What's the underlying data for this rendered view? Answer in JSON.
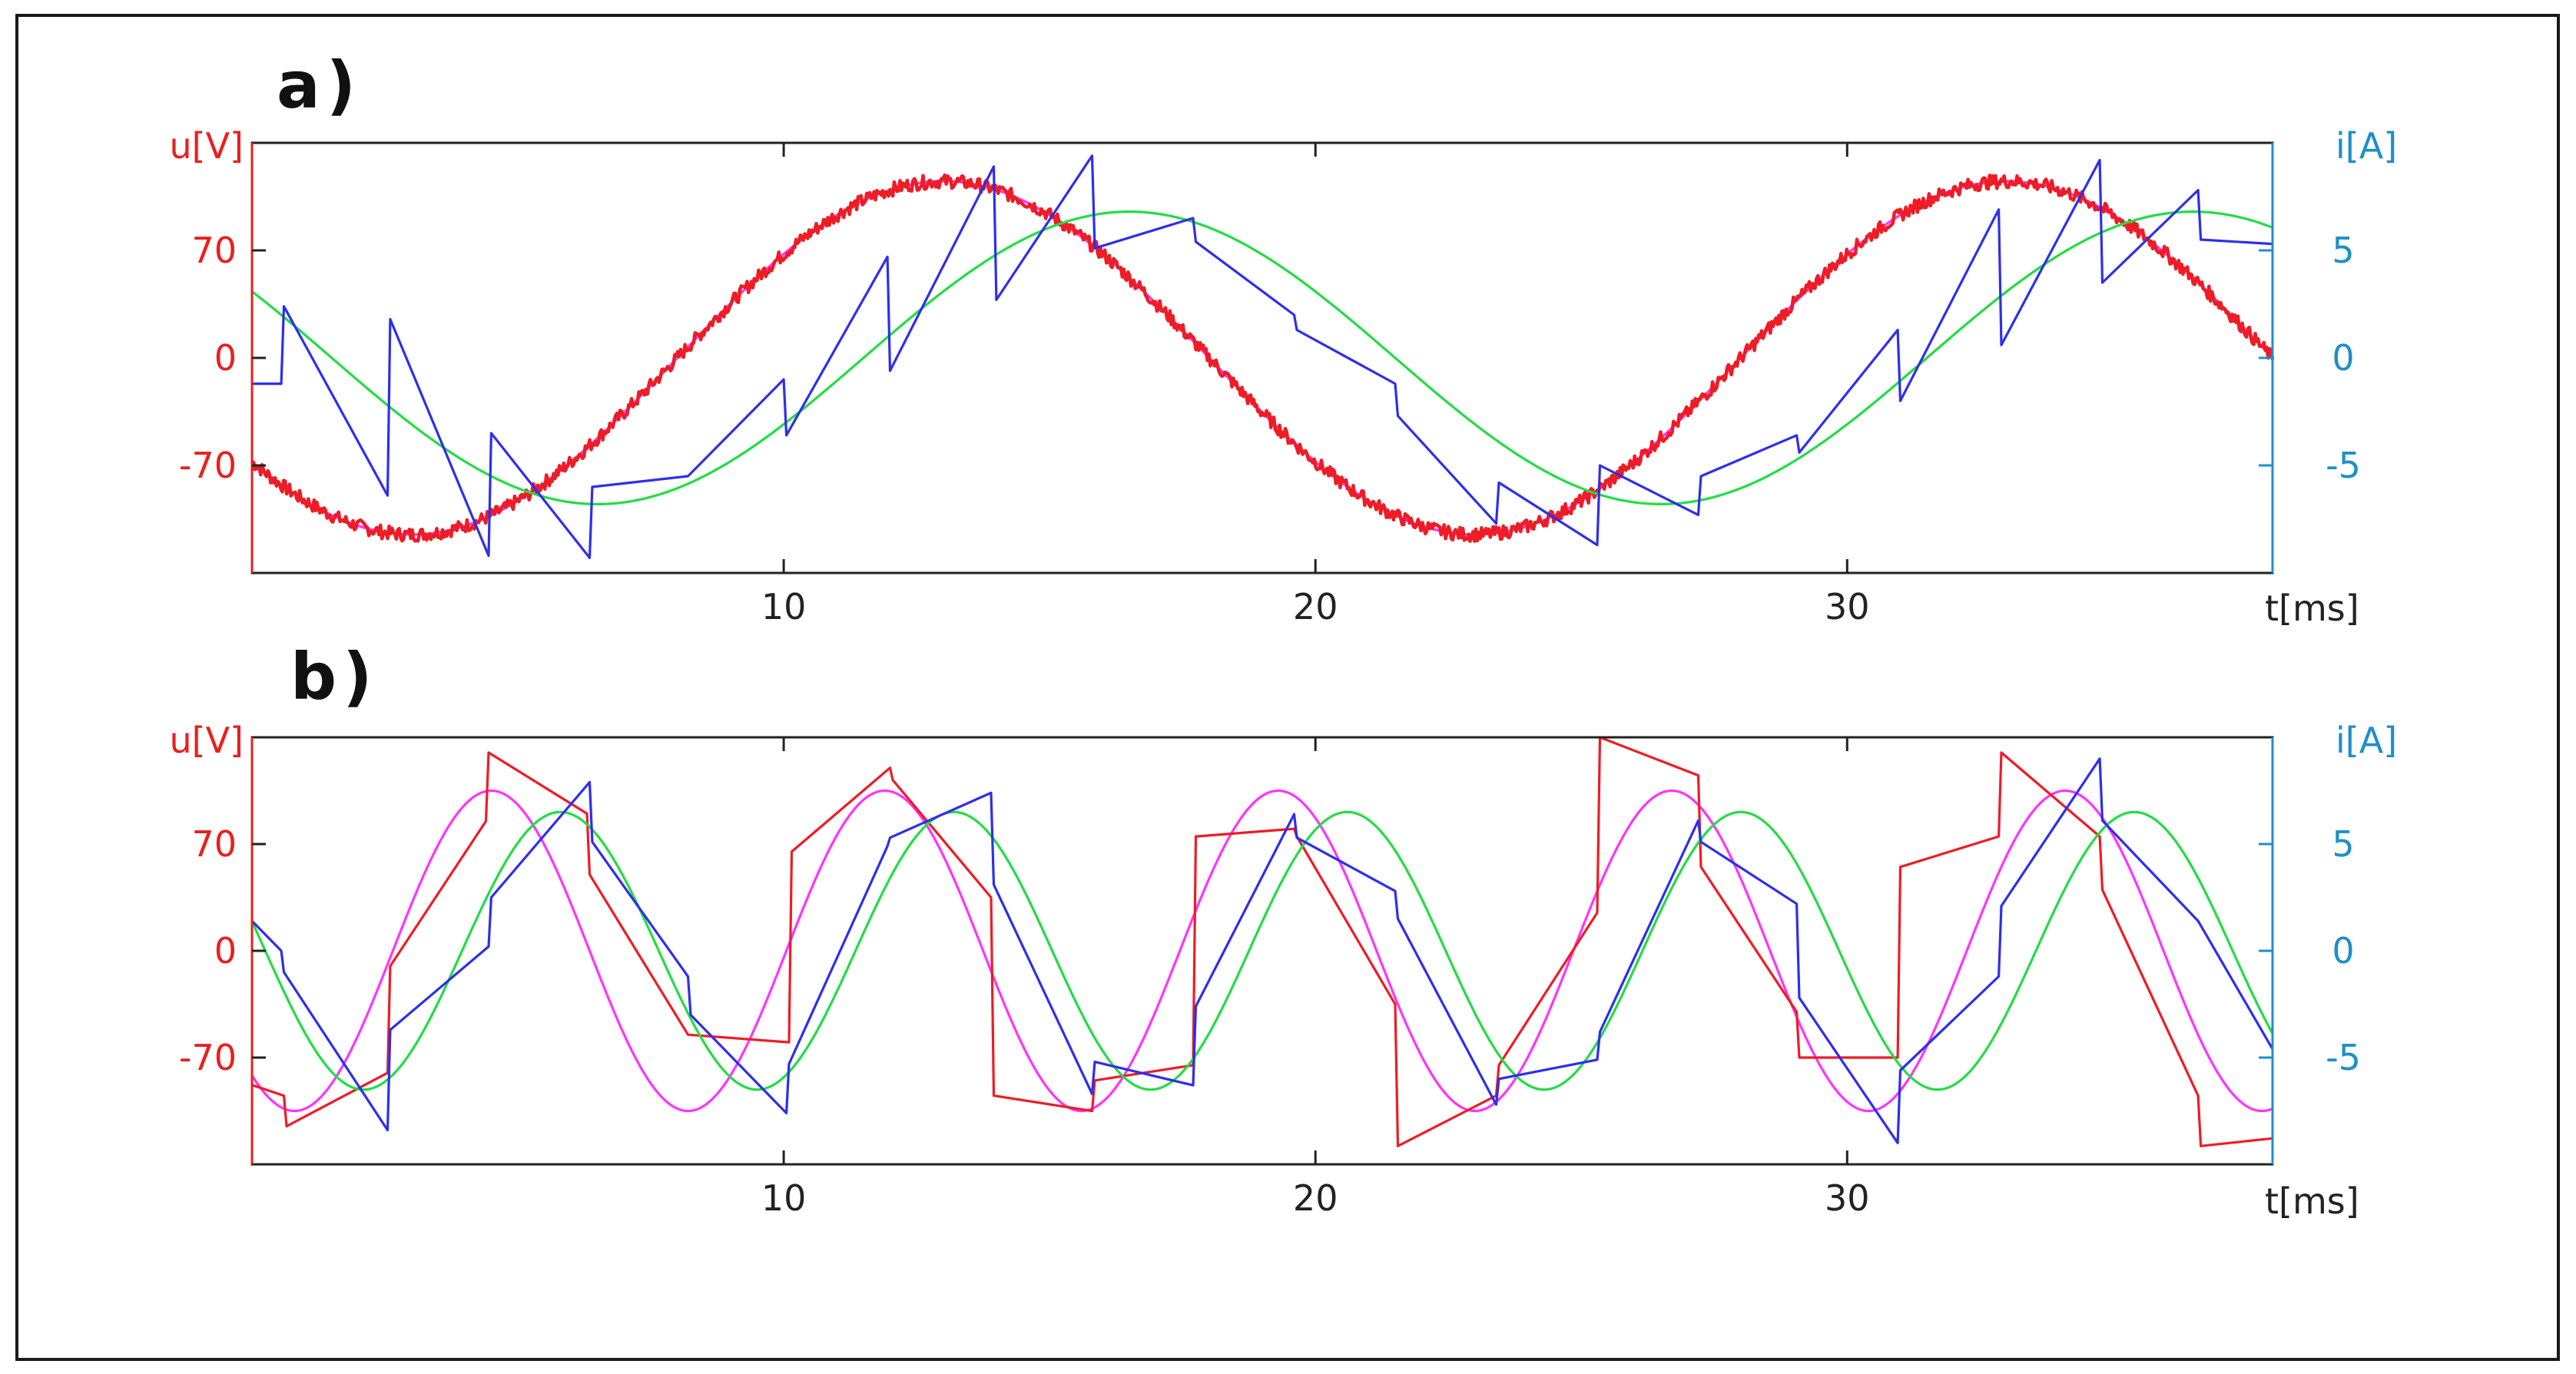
{
  "chart_data": [
    {
      "panel_label": "a)",
      "type": "line",
      "xlabel": "t[ms]",
      "ylabel_left": "u[V]",
      "ylabel_right": "i[A]",
      "xlim": [
        0,
        38
      ],
      "ylim_left": [
        -140,
        140
      ],
      "ylim_right": [
        -10,
        10
      ],
      "xticks": [
        10,
        20,
        30
      ],
      "yticks_left": [
        -70,
        0,
        70
      ],
      "yticks_right": [
        -5,
        0,
        5
      ],
      "colors": {
        "voltage": "#ee1c25",
        "voltage_fundamental": "#ff33ff",
        "current": "#2e2eee",
        "current_fundamental": "#22dd44",
        "left_axis": "#e8201e",
        "right_axis": "#1f8fc8"
      },
      "series": [
        {
          "axis": "left",
          "color": "#ff33ff",
          "kind": "sine",
          "amplitude": 115,
          "phase_peak_ms": 13,
          "period_ms": 20
        },
        {
          "axis": "left",
          "color": "#ee1c25",
          "kind": "noisy-sine",
          "amplitude": 115,
          "phase_peak_ms": 13,
          "period_ms": 20
        },
        {
          "axis": "right",
          "color": "#22dd44",
          "kind": "sine",
          "amplitude": 6.8,
          "phase_peak_ms": 16.5,
          "period_ms": 20
        },
        {
          "axis": "right",
          "color": "#2e2eee",
          "kind": "points",
          "x": [
            0.0,
            0.55,
            0.6,
            2.55,
            2.6,
            4.45,
            4.5,
            6.35,
            6.4,
            8.2,
            10.0,
            10.05,
            11.95,
            12.0,
            13.95,
            14.0,
            15.8,
            15.85,
            17.7,
            17.75,
            19.6,
            19.65,
            21.5,
            21.55,
            23.4,
            23.45,
            25.3,
            25.35,
            27.2,
            27.25,
            29.05,
            29.1,
            30.95,
            31.0,
            32.85,
            32.9,
            34.75,
            34.8,
            36.6,
            36.65,
            38.0
          ],
          "y": [
            -1.2,
            -1.2,
            2.4,
            -6.4,
            1.8,
            -9.2,
            -3.5,
            -9.3,
            -6.0,
            -5.5,
            -1.0,
            -3.6,
            4.7,
            -0.6,
            8.9,
            2.7,
            9.4,
            5.1,
            6.5,
            5.4,
            2.0,
            1.3,
            -1.2,
            -2.7,
            -7.7,
            -5.8,
            -8.7,
            -5.0,
            -7.3,
            -5.5,
            -3.6,
            -4.4,
            1.3,
            -2.0,
            6.9,
            0.6,
            9.2,
            3.5,
            7.8,
            5.5,
            5.3
          ]
        }
      ]
    },
    {
      "panel_label": "b)",
      "type": "line",
      "xlabel": "t[ms]",
      "ylabel_left": "u[V]",
      "ylabel_right": "i[A]",
      "xlim": [
        0,
        38
      ],
      "ylim_left": [
        -140,
        140
      ],
      "ylim_right": [
        -10,
        10
      ],
      "xticks": [
        10,
        20,
        30
      ],
      "yticks_left": [
        -70,
        0,
        70
      ],
      "yticks_right": [
        -5,
        0,
        5
      ],
      "colors": {
        "voltage": "#ee1c25",
        "voltage_fundamental": "#ff33ff",
        "current": "#2e2eee",
        "current_fundamental": "#22dd44"
      },
      "series": [
        {
          "axis": "left",
          "color": "#ff33ff",
          "kind": "sine",
          "amplitude": 105,
          "phase_peak_ms": 4.5,
          "period_ms": 7.4
        },
        {
          "axis": "left",
          "color": "#ee1c25",
          "kind": "points",
          "x": [
            0.0,
            0.6,
            0.65,
            2.55,
            2.6,
            4.4,
            4.45,
            6.3,
            6.35,
            8.2,
            10.1,
            10.15,
            12.0,
            12.05,
            13.9,
            13.95,
            15.8,
            15.85,
            17.7,
            17.75,
            19.6,
            19.65,
            21.5,
            21.55,
            23.4,
            23.45,
            25.3,
            25.35,
            27.2,
            27.25,
            29.05,
            29.1,
            30.95,
            31.0,
            32.85,
            32.9,
            34.75,
            34.8,
            36.6,
            36.65,
            38.0
          ],
          "y": [
            -88,
            -95,
            -115,
            -80,
            -10,
            85,
            130,
            90,
            50,
            -55,
            -60,
            65,
            120,
            112,
            35,
            -95,
            -105,
            -85,
            -75,
            75,
            80,
            75,
            -35,
            -128,
            -95,
            -75,
            25,
            140,
            115,
            55,
            -40,
            -70,
            -70,
            55,
            75,
            130,
            75,
            40,
            -95,
            -128,
            -123
          ]
        },
        {
          "axis": "right",
          "color": "#22dd44",
          "kind": "sine",
          "amplitude": 6.5,
          "phase_peak_ms": 5.8,
          "period_ms": 7.4
        },
        {
          "axis": "right",
          "color": "#2e2eee",
          "kind": "points",
          "x": [
            0.0,
            0.55,
            0.6,
            2.55,
            2.6,
            4.45,
            4.5,
            6.35,
            6.4,
            8.2,
            8.25,
            10.05,
            10.1,
            11.95,
            12.0,
            13.9,
            13.95,
            15.8,
            15.85,
            17.7,
            17.75,
            19.6,
            19.65,
            21.5,
            21.55,
            23.4,
            23.45,
            25.3,
            25.35,
            27.2,
            27.25,
            29.05,
            29.1,
            30.95,
            31.0,
            32.85,
            32.9,
            34.75,
            34.8,
            36.6,
            38.0
          ],
          "y": [
            1.4,
            0.0,
            -1.0,
            -8.4,
            -3.7,
            0.2,
            2.5,
            7.9,
            5.1,
            -1.2,
            -3.0,
            -7.6,
            -5.3,
            4.9,
            5.3,
            7.4,
            3.1,
            -6.7,
            -5.2,
            -6.3,
            -2.6,
            6.4,
            5.3,
            2.8,
            1.5,
            -7.2,
            -6.0,
            -5.1,
            -3.8,
            6.1,
            5.1,
            2.2,
            -2.2,
            -9.0,
            -5.6,
            -1.2,
            2.1,
            9.0,
            6.1,
            1.4,
            -4.6
          ]
        }
      ]
    }
  ]
}
